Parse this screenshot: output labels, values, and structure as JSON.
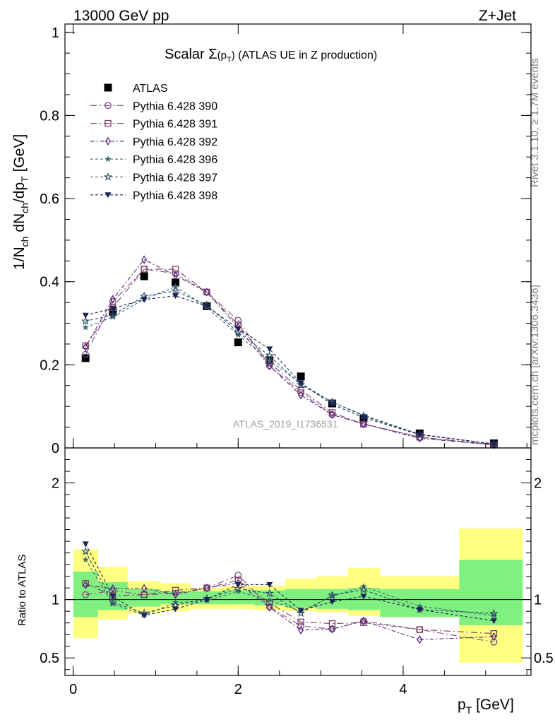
{
  "header": {
    "left": "13000 GeV pp",
    "right": "Z+Jet",
    "side_top": "Rivet 3.1.10, ≥ 1.7M events",
    "side_bottom": "mcplots.cern.ch [arXiv:1306.3436]",
    "watermark": "ATLAS_2019_I1736531"
  },
  "chart_data": {
    "type": "scatter",
    "title": "Scalar Σ(p_T) (ATLAS UE in Z production)",
    "title_parts": {
      "pre": "Scalar ",
      "sigma": "Σ",
      "open": "(p",
      "sub": "T",
      "close": ")",
      "post": " (ATLAS UE in Z production)"
    },
    "xlabel": "p_T [GeV]",
    "xlabel_parts": {
      "p": "p",
      "sub": "T",
      "unit": " [GeV]"
    },
    "ylabel": "1/N_ch dN_ch/dp_T [GeV]",
    "ylabel_parts": {
      "a": "1/N",
      "a_sub": "ch",
      "b": " dN",
      "b_sub": "ch",
      "c": "/dp",
      "c_sub": "T",
      "d": " [GeV]"
    },
    "ratio_ylabel": "Ratio to ATLAS",
    "xlim": [
      -0.1,
      5.55
    ],
    "ylim": [
      0,
      1.02
    ],
    "ratio_ylim": [
      0.35,
      2.3
    ],
    "xticks": [
      0,
      2,
      4
    ],
    "xtick_labels": [
      "0",
      "2",
      "4"
    ],
    "yticks": [
      0,
      0.2,
      0.4,
      0.6,
      0.8,
      1
    ],
    "ytick_labels": [
      "0",
      "0.2",
      "0.4",
      "0.6",
      "0.8",
      "1"
    ],
    "ratio_yticks": [
      0.5,
      1,
      2
    ],
    "ratio_ytick_labels": [
      "0.5",
      "1",
      "2"
    ],
    "x": [
      0.15,
      0.48,
      0.86,
      1.24,
      1.62,
      2.0,
      2.38,
      2.76,
      3.14,
      3.52,
      4.2,
      5.1
    ],
    "bin_edges": [
      0,
      0.3,
      0.66,
      1.06,
      1.42,
      1.81,
      2.19,
      2.57,
      2.95,
      3.33,
      3.72,
      4.68,
      5.45
    ],
    "band_outer": [
      [
        0.67,
        1.43
      ],
      [
        0.83,
        1.28
      ],
      [
        0.88,
        1.16
      ],
      [
        0.9,
        1.14
      ],
      [
        0.92,
        1.1
      ],
      [
        0.92,
        1.12
      ],
      [
        0.91,
        1.12
      ],
      [
        0.9,
        1.18
      ],
      [
        0.89,
        1.2
      ],
      [
        0.86,
        1.27
      ],
      [
        0.87,
        1.2
      ],
      [
        0.46,
        1.61
      ]
    ],
    "band_inner": [
      [
        0.85,
        1.24
      ],
      [
        0.91,
        1.15
      ],
      [
        0.94,
        1.09
      ],
      [
        0.96,
        1.07
      ],
      [
        0.96,
        1.07
      ],
      [
        0.96,
        1.08
      ],
      [
        0.95,
        1.08
      ],
      [
        0.93,
        1.09
      ],
      [
        0.92,
        1.09
      ],
      [
        0.91,
        1.1
      ],
      [
        0.85,
        1.09
      ],
      [
        0.78,
        1.34
      ]
    ],
    "series": [
      {
        "name": "ATLAS",
        "color": "#000000",
        "marker": "square",
        "dash": "",
        "values": [
          0.216,
          0.327,
          0.413,
          0.398,
          0.341,
          0.254,
          0.211,
          0.172,
          0.107,
          0.071,
          0.035,
          0.011
        ]
      },
      {
        "name": "Pythia 6.428 390",
        "color": "#7a4c87",
        "marker": "circle",
        "dash": "9 4 2 4",
        "values": [
          0.225,
          0.352,
          0.43,
          0.42,
          0.375,
          0.307,
          0.198,
          0.133,
          0.08,
          0.058,
          0.026,
          0.007
        ]
      },
      {
        "name": "Pythia 6.428 391",
        "color": "#7d3d5e",
        "marker": "square-open",
        "dash": "9 4 2 4",
        "values": [
          0.246,
          0.338,
          0.43,
          0.43,
          0.375,
          0.296,
          0.205,
          0.139,
          0.085,
          0.057,
          0.026,
          0.0078
        ]
      },
      {
        "name": "Pythia 6.428 392",
        "color": "#57247e",
        "marker": "diamond",
        "dash": "6 3 2 3",
        "values": [
          0.243,
          0.358,
          0.453,
          0.415,
          0.375,
          0.29,
          0.197,
          0.127,
          0.08,
          0.058,
          0.023,
          0.0075
        ]
      },
      {
        "name": "Pythia 6.428 396",
        "color": "#3d6b77",
        "marker": "star-filled",
        "dash": "4 3",
        "values": [
          0.29,
          0.315,
          0.358,
          0.388,
          0.338,
          0.272,
          0.21,
          0.155,
          0.11,
          0.079,
          0.033,
          0.0095
        ]
      },
      {
        "name": "Pythia 6.428 397",
        "color": "#2b4b6a",
        "marker": "star-open",
        "dash": "4 3",
        "values": [
          0.305,
          0.32,
          0.365,
          0.378,
          0.344,
          0.278,
          0.222,
          0.152,
          0.111,
          0.077,
          0.032,
          0.0097
        ]
      },
      {
        "name": "Pythia 6.428 398",
        "color": "#1d2357",
        "marker": "triangle-down",
        "dash": "4 3",
        "values": [
          0.319,
          0.336,
          0.357,
          0.366,
          0.341,
          0.287,
          0.238,
          0.156,
          0.105,
          0.073,
          0.032,
          0.009
        ]
      }
    ]
  }
}
